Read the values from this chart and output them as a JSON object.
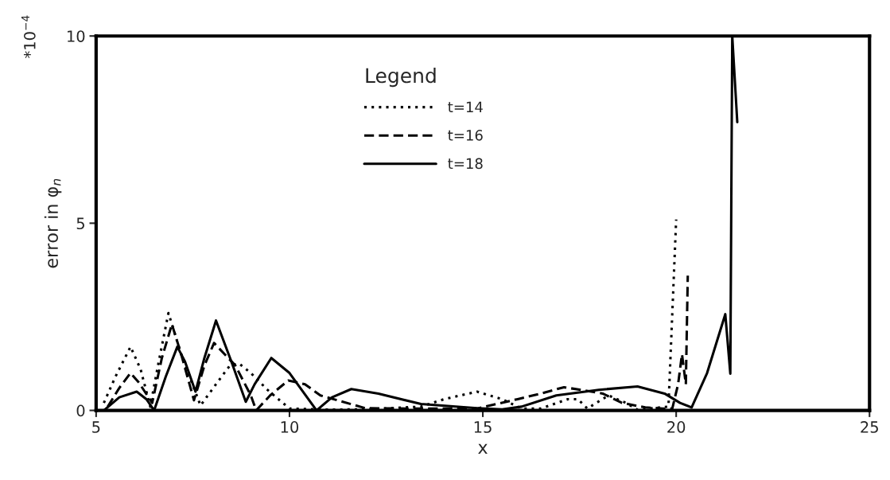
{
  "chart_data": {
    "type": "line",
    "xlabel": "x",
    "ylabel": "error in φ$_{n}$",
    "legend_title": "Legend",
    "legend": "top",
    "grid": false,
    "annotations": [
      "*10$^{−4}$"
    ],
    "xlim": [
      5,
      25
    ],
    "xticks": [
      5,
      10,
      15,
      20,
      25
    ],
    "ylim": [
      0,
      10
    ],
    "yticks": [
      0,
      5,
      10
    ],
    "series": [
      {
        "name": "t=14",
        "color": "#000000",
        "line_style": "dotted",
        "x": [
          5.2,
          5.5,
          5.89,
          6.15,
          6.4,
          6.6,
          6.87,
          7.2,
          7.7,
          8.1,
          8.46,
          8.7,
          9.0,
          9.43,
          10.0,
          11.0,
          12.0,
          13.4,
          14.0,
          14.85,
          15.5,
          16.0,
          16.5,
          17.2,
          17.46,
          17.7,
          18.25,
          18.7,
          19.0,
          19.8,
          20.0
        ],
        "values": [
          0.2,
          0.9,
          1.7,
          1.1,
          0.1,
          1.2,
          2.6,
          1.5,
          0.13,
          0.7,
          1.2,
          1.25,
          1.0,
          0.55,
          0.05,
          0.02,
          0.03,
          0.1,
          0.3,
          0.5,
          0.3,
          0.05,
          0.05,
          0.3,
          0.3,
          0.05,
          0.4,
          0.2,
          0.02,
          0.1,
          5.1
        ]
      },
      {
        "name": "t=16",
        "color": "#000000",
        "line_style": "dashed",
        "x": [
          5.3,
          5.6,
          5.89,
          6.1,
          6.45,
          6.7,
          6.96,
          7.2,
          7.53,
          7.8,
          8.05,
          8.6,
          9.0,
          9.14,
          9.5,
          9.97,
          10.4,
          10.8,
          11.96,
          13.0,
          14.85,
          15.9,
          16.5,
          17.1,
          18.1,
          18.6,
          19.2,
          19.65,
          19.9,
          20.05,
          20.15,
          20.25,
          20.3
        ],
        "values": [
          0.1,
          0.6,
          1.0,
          0.75,
          0.2,
          1.4,
          2.3,
          1.5,
          0.27,
          1.2,
          1.8,
          1.2,
          0.4,
          0.0,
          0.4,
          0.8,
          0.7,
          0.4,
          0.06,
          0.05,
          0.05,
          0.3,
          0.45,
          0.62,
          0.45,
          0.2,
          0.08,
          0.05,
          0.05,
          0.7,
          1.5,
          0.7,
          3.6
        ]
      },
      {
        "name": "t=18",
        "color": "#000000",
        "line_style": "solid",
        "x": [
          5.2,
          5.6,
          6.05,
          6.3,
          6.5,
          6.8,
          7.1,
          7.3,
          7.57,
          7.8,
          8.1,
          8.5,
          8.87,
          9.1,
          9.53,
          10.0,
          10.7,
          11.1,
          11.6,
          12.3,
          13.4,
          14.85,
          15.5,
          16.0,
          16.9,
          18.0,
          19.0,
          19.7,
          20.1,
          20.4,
          20.8,
          21.27,
          21.4,
          21.45,
          21.58
        ],
        "values": [
          0.0,
          0.35,
          0.5,
          0.3,
          0.0,
          0.9,
          1.7,
          1.3,
          0.5,
          1.4,
          2.4,
          1.3,
          0.23,
          0.7,
          1.4,
          1.0,
          0.0,
          0.35,
          0.57,
          0.45,
          0.17,
          0.06,
          0.03,
          0.1,
          0.4,
          0.55,
          0.64,
          0.45,
          0.2,
          0.08,
          1.0,
          2.57,
          0.98,
          10.0,
          7.7
        ]
      }
    ]
  }
}
